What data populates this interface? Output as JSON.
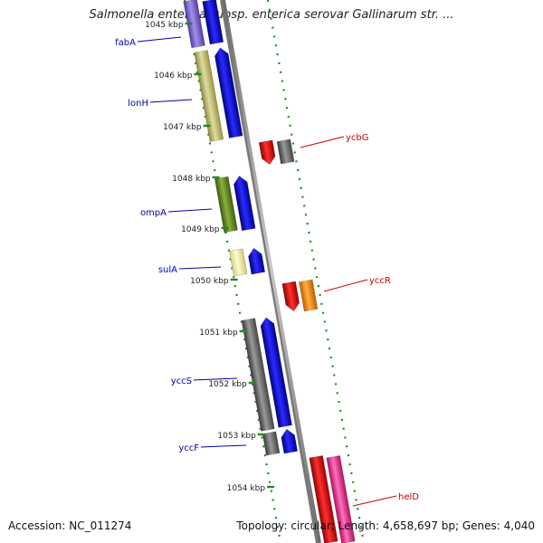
{
  "title": "Salmonella enterica subsp. enterica serovar Gallinarum str. ...",
  "footer": {
    "accession": "Accession: NC_011274",
    "summary": "Topology: circular; Length: 4,658,697 bp; Genes: 4,040"
  },
  "scale_unit": "kbp",
  "ticks": [
    {
      "label": "1045 kbp"
    },
    {
      "label": "1046 kbp"
    },
    {
      "label": "1047 kbp"
    },
    {
      "label": "1048 kbp"
    },
    {
      "label": "1049 kbp"
    },
    {
      "label": "1050 kbp"
    },
    {
      "label": "1051 kbp"
    },
    {
      "label": "1052 kbp"
    },
    {
      "label": "1053 kbp"
    },
    {
      "label": "1054 kbp"
    }
  ],
  "genes": [
    {
      "name": "fabA",
      "strand": "left",
      "color": "#0000aa"
    },
    {
      "name": "lonH",
      "strand": "left",
      "color": "#0000aa"
    },
    {
      "name": "ompA",
      "strand": "left",
      "color": "#0000aa"
    },
    {
      "name": "sulA",
      "strand": "left",
      "color": "#0000aa"
    },
    {
      "name": "yccS",
      "strand": "left",
      "color": "#0000aa"
    },
    {
      "name": "yccF",
      "strand": "left",
      "color": "#0000aa"
    },
    {
      "name": "ycbG",
      "strand": "right",
      "color": "#cc0000"
    },
    {
      "name": "yccR",
      "strand": "right",
      "color": "#cc0000"
    },
    {
      "name": "helD",
      "strand": "right",
      "color": "#cc0000"
    }
  ],
  "colors": {
    "backbone": "#8a8a8a",
    "tick_dots": "#1f8a1f",
    "cds_forward": "#0000ee",
    "cds_reverse": "#ee0000"
  }
}
